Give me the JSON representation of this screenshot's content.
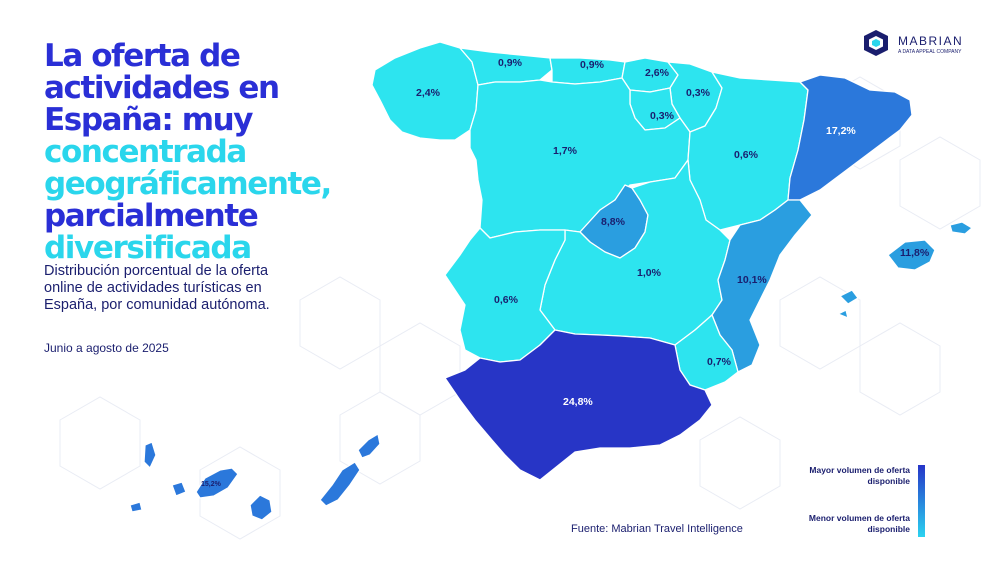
{
  "title": {
    "line1": "La oferta de",
    "line2": "actividades en",
    "line3": "España: muy",
    "line4": "concentrada",
    "line5": "geográficamente,",
    "line6": "parcialmente",
    "line7": "diversificada",
    "color_dark": "#2a2fd6",
    "color_light": "#2ad6ec"
  },
  "subtitle": "Distribución porcentual de la oferta online de actividades turísticas en España, por comunidad autónoma.",
  "period": "Junio a agosto de 2025",
  "brand": {
    "name": "MABRIAN",
    "tagline": "A DATA APPEAL COMPANY"
  },
  "source": "Fuente: Mabrian Travel Intelligence",
  "legend": {
    "high": "Mayor volumen de oferta disponible",
    "low": "Menor volumen de oferta disponible",
    "color_high": "#2635c8",
    "color_low": "#2bd3f0"
  },
  "regions": [
    {
      "name": "Galicia",
      "value": "2,4%"
    },
    {
      "name": "Asturias",
      "value": "0,9%"
    },
    {
      "name": "Cantabria",
      "value": "0,9%"
    },
    {
      "name": "País Vasco",
      "value": "2,6%"
    },
    {
      "name": "Navarra",
      "value": "0,3%"
    },
    {
      "name": "La Rioja",
      "value": "0,3%"
    },
    {
      "name": "Castilla y León",
      "value": "1,7%"
    },
    {
      "name": "Aragón",
      "value": "0,6%"
    },
    {
      "name": "Cataluña",
      "value": "17,2%"
    },
    {
      "name": "Madrid",
      "value": "8,8%"
    },
    {
      "name": "Castilla-La Mancha",
      "value": "1,0%"
    },
    {
      "name": "Comunidad Valenciana",
      "value": "10,1%"
    },
    {
      "name": "Extremadura",
      "value": "0,6%"
    },
    {
      "name": "Región de Murcia",
      "value": "0,7%"
    },
    {
      "name": "Andalucía",
      "value": "24,8%"
    },
    {
      "name": "Islas Baleares",
      "value": "11,8%"
    },
    {
      "name": "Canarias",
      "value": "15,2%"
    }
  ],
  "colors": {
    "tier_low": "#2de4ef",
    "tier_mid": "#2a9ee0",
    "tier_high": "#2b78db",
    "tier_top": "#2735c6",
    "border": "#ffffff"
  }
}
